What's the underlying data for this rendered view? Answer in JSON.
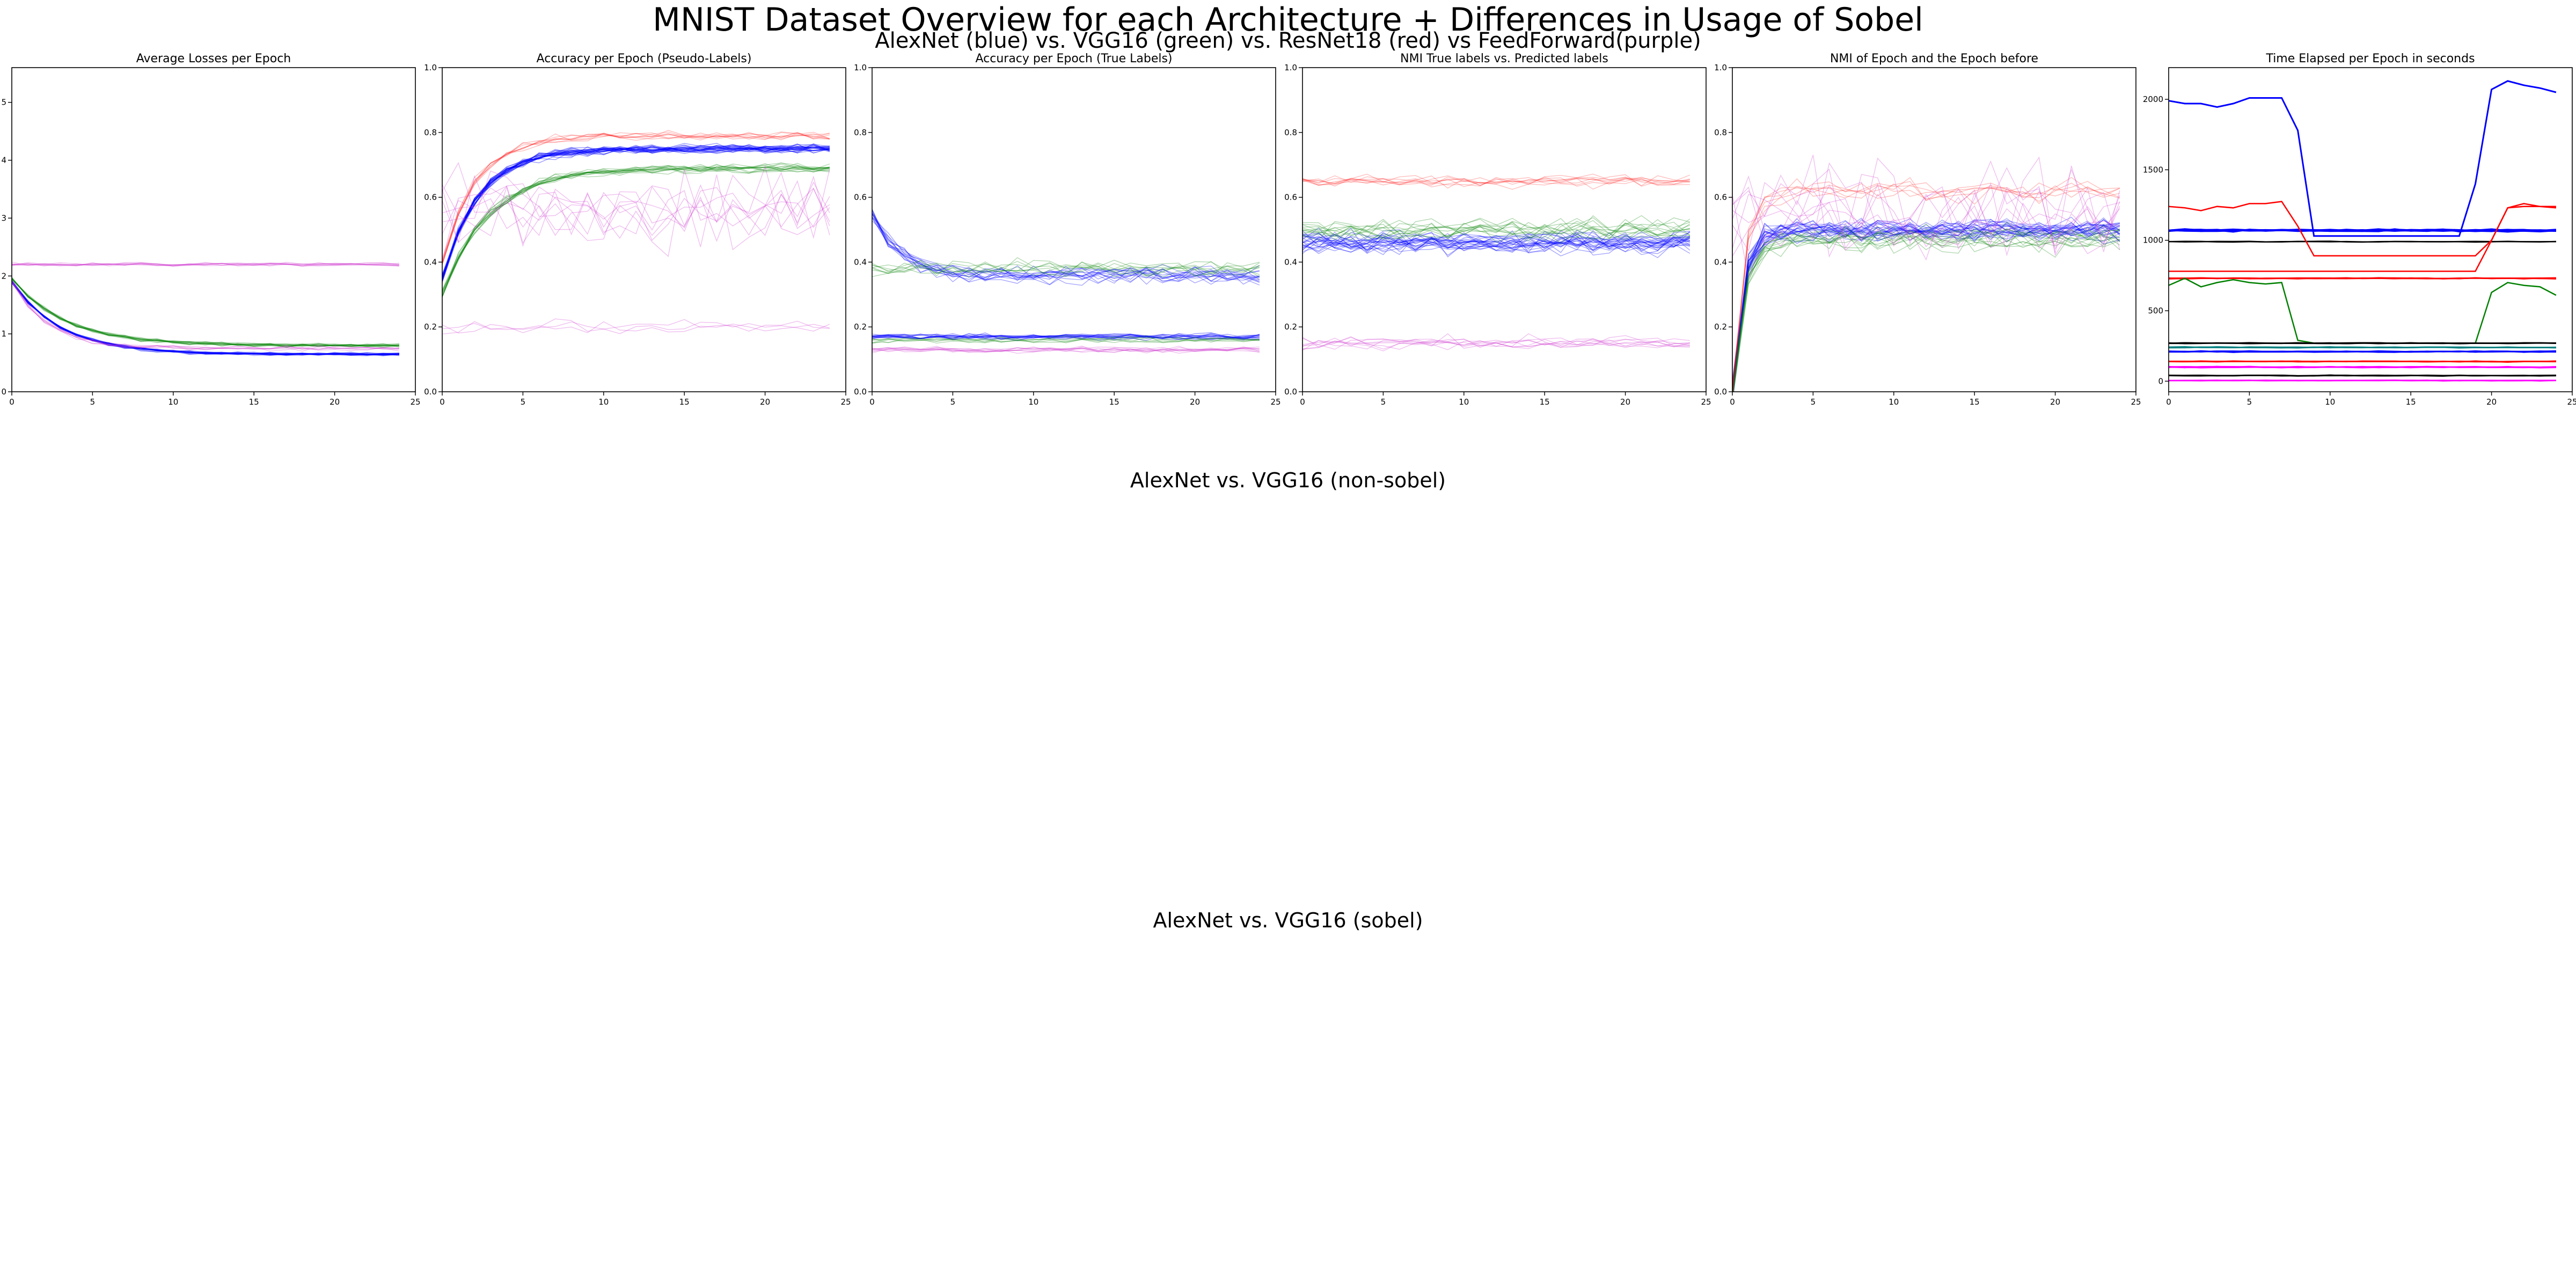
{
  "figure": {
    "title": "MNIST Dataset Overview for each Architecture + Differences in Usage of Sobel",
    "subtitle": "AlexNet (blue) vs. VGG16 (green) vs. ResNet18 (red) vs FeedForward(purple)",
    "sections": [
      "AlexNet vs. VGG16 (non-sobel)",
      "AlexNet vs. VGG16 (sobel)"
    ]
  },
  "colors": {
    "alexnet": "#0000ff",
    "vgg16": "#008000",
    "resnet18": "#ff0000",
    "feedforward": "#cc33cc",
    "black": "#000000",
    "magenta": "#ff00ff",
    "teal": "#008080"
  },
  "chart_data": [
    {
      "type": "line",
      "title": "Average Losses per Epoch",
      "xlim": [
        0,
        25
      ],
      "ylim": [
        0,
        5.6
      ],
      "xticks": [
        0,
        5,
        10,
        15,
        20,
        25
      ],
      "yticks": [
        0,
        1,
        2,
        3,
        4,
        5
      ],
      "series": [
        {
          "group": "alexnet",
          "count": 22,
          "alpha": 0.35,
          "width": 1.4,
          "profile": {
            "kind": "decay",
            "start": 1.9,
            "end": 0.65,
            "rate": 0.33,
            "jitter": 0.04
          }
        },
        {
          "group": "vgg16",
          "count": 14,
          "alpha": 0.3,
          "width": 1.4,
          "profile": {
            "kind": "decay",
            "start": 1.95,
            "end": 0.8,
            "rate": 0.3,
            "jitter": 0.05
          }
        },
        {
          "group": "feedforward",
          "count": 8,
          "alpha": 0.3,
          "width": 1.4,
          "profile": {
            "kind": "flat",
            "level": 2.2,
            "jitter": 0.05
          }
        },
        {
          "group": "feedforward",
          "count": 6,
          "alpha": 0.3,
          "width": 1.4,
          "profile": {
            "kind": "decay",
            "start": 1.9,
            "end": 0.75,
            "rate": 0.45,
            "jitter": 0.06
          }
        }
      ]
    },
    {
      "type": "line",
      "title": "Accuracy per Epoch (Pseudo-Labels)",
      "xlim": [
        0,
        25
      ],
      "ylim": [
        0,
        1.0
      ],
      "xticks": [
        0,
        5,
        10,
        15,
        20,
        25
      ],
      "yticks": [
        0.0,
        0.2,
        0.4,
        0.6,
        0.8,
        1.0
      ],
      "series": [
        {
          "group": "alexnet",
          "count": 24,
          "alpha": 0.4,
          "width": 1.4,
          "profile": {
            "kind": "rise",
            "start": 0.35,
            "end": 0.75,
            "rate": 0.45,
            "jitter": 0.02
          }
        },
        {
          "group": "vgg16",
          "count": 14,
          "alpha": 0.3,
          "width": 1.4,
          "profile": {
            "kind": "rise",
            "start": 0.3,
            "end": 0.69,
            "rate": 0.35,
            "jitter": 0.02
          }
        },
        {
          "group": "resnet18",
          "count": 8,
          "alpha": 0.25,
          "width": 1.4,
          "profile": {
            "kind": "rise",
            "start": 0.4,
            "end": 0.79,
            "rate": 0.5,
            "jitter": 0.02
          }
        },
        {
          "group": "feedforward",
          "count": 8,
          "alpha": 0.3,
          "width": 1.4,
          "profile": {
            "kind": "noisy",
            "level": 0.55,
            "jitter": 0.18
          }
        },
        {
          "group": "feedforward",
          "count": 3,
          "alpha": 0.3,
          "width": 1.4,
          "profile": {
            "kind": "flat",
            "level": 0.2,
            "jitter": 0.03
          }
        }
      ]
    },
    {
      "type": "line",
      "title": "Accuracy per Epoch (True Labels)",
      "xlim": [
        0,
        25
      ],
      "ylim": [
        0,
        1.0
      ],
      "xticks": [
        0,
        5,
        10,
        15,
        20,
        25
      ],
      "yticks": [
        0.0,
        0.2,
        0.4,
        0.6,
        0.8,
        1.0
      ],
      "series": [
        {
          "group": "alexnet",
          "count": 14,
          "alpha": 0.35,
          "width": 1.4,
          "profile": {
            "kind": "decay",
            "start": 0.55,
            "end": 0.36,
            "rate": 0.6,
            "jitter": 0.04
          }
        },
        {
          "group": "alexnet",
          "count": 12,
          "alpha": 0.4,
          "width": 1.4,
          "profile": {
            "kind": "flat",
            "level": 0.17,
            "jitter": 0.015
          }
        },
        {
          "group": "vgg16",
          "count": 8,
          "alpha": 0.3,
          "width": 1.4,
          "profile": {
            "kind": "flat",
            "level": 0.38,
            "jitter": 0.04
          }
        },
        {
          "group": "vgg16",
          "count": 6,
          "alpha": 0.3,
          "width": 1.4,
          "profile": {
            "kind": "flat",
            "level": 0.16,
            "jitter": 0.015
          }
        },
        {
          "group": "feedforward",
          "count": 8,
          "alpha": 0.3,
          "width": 1.4,
          "profile": {
            "kind": "flat",
            "level": 0.13,
            "jitter": 0.015
          }
        }
      ]
    },
    {
      "type": "line",
      "title": "NMI True labels vs. Predicted labels",
      "xlim": [
        0,
        25
      ],
      "ylim": [
        0,
        1.0
      ],
      "xticks": [
        0,
        5,
        10,
        15,
        20,
        25
      ],
      "yticks": [
        0.0,
        0.2,
        0.4,
        0.6,
        0.8,
        1.0
      ],
      "series": [
        {
          "group": "alexnet",
          "count": 24,
          "alpha": 0.35,
          "width": 1.4,
          "profile": {
            "kind": "flat",
            "level": 0.46,
            "jitter": 0.05
          }
        },
        {
          "group": "vgg16",
          "count": 12,
          "alpha": 0.3,
          "width": 1.4,
          "profile": {
            "kind": "flat",
            "level": 0.5,
            "jitter": 0.05
          }
        },
        {
          "group": "resnet18",
          "count": 8,
          "alpha": 0.25,
          "width": 1.4,
          "profile": {
            "kind": "flat",
            "level": 0.65,
            "jitter": 0.03
          }
        },
        {
          "group": "feedforward",
          "count": 8,
          "alpha": 0.3,
          "width": 1.4,
          "profile": {
            "kind": "flat",
            "level": 0.15,
            "jitter": 0.03
          }
        }
      ]
    },
    {
      "type": "line",
      "title": "NMI of Epoch and the Epoch before",
      "xlim": [
        0,
        25
      ],
      "ylim": [
        0,
        1.0
      ],
      "xticks": [
        0,
        5,
        10,
        15,
        20,
        25
      ],
      "yticks": [
        0.0,
        0.2,
        0.4,
        0.6,
        0.8,
        1.0
      ],
      "series": [
        {
          "group": "alexnet",
          "count": 24,
          "alpha": 0.35,
          "width": 1.4,
          "profile": {
            "kind": "rise",
            "start": 0.0,
            "end": 0.5,
            "rate": 1.6,
            "jitter": 0.05
          }
        },
        {
          "group": "vgg16",
          "count": 12,
          "alpha": 0.3,
          "width": 1.4,
          "profile": {
            "kind": "rise",
            "start": 0.0,
            "end": 0.47,
            "rate": 1.4,
            "jitter": 0.06
          }
        },
        {
          "group": "resnet18",
          "count": 6,
          "alpha": 0.25,
          "width": 1.4,
          "profile": {
            "kind": "rise",
            "start": 0.0,
            "end": 0.62,
            "rate": 1.5,
            "jitter": 0.05
          }
        },
        {
          "group": "feedforward",
          "count": 8,
          "alpha": 0.3,
          "width": 1.4,
          "profile": {
            "kind": "noisy",
            "level": 0.55,
            "jitter": 0.22
          }
        }
      ]
    },
    {
      "type": "line",
      "title": "Time Elapsed per Epoch in seconds",
      "xlim": [
        0,
        25
      ],
      "ylim": [
        -75,
        2225
      ],
      "xticks": [
        0,
        5,
        10,
        15,
        20,
        25
      ],
      "yticks": [
        0,
        500,
        1000,
        1500,
        2000
      ],
      "series": [
        {
          "group": "alexnet",
          "count": 1,
          "alpha": 1,
          "width": 3,
          "values": [
            1990,
            1970,
            1970,
            1945,
            1970,
            2010,
            2010,
            2010,
            1780,
            1030,
            1030,
            1030,
            1030,
            1030,
            1030,
            1030,
            1030,
            1030,
            1030,
            1400,
            2070,
            2130,
            2100,
            2080,
            2050
          ]
        },
        {
          "group": "alexnet",
          "count": 8,
          "alpha": 1,
          "width": 3,
          "profile": {
            "kind": "flat",
            "level": 1070,
            "jitter": 12
          }
        },
        {
          "group": "black",
          "count": 2,
          "alpha": 1,
          "width": 2.5,
          "profile": {
            "kind": "flat",
            "level": 990,
            "jitter": 4
          }
        },
        {
          "group": "resnet18",
          "count": 1,
          "alpha": 1,
          "width": 2.5,
          "values": [
            1240,
            1230,
            1210,
            1240,
            1230,
            1260,
            1260,
            1275,
            1100,
            890,
            890,
            890,
            890,
            890,
            890,
            890,
            890,
            890,
            890,
            890,
            1000,
            1230,
            1260,
            1240,
            1230
          ]
        },
        {
          "group": "resnet18",
          "count": 1,
          "alpha": 1,
          "width": 2.5,
          "values": [
            780,
            780,
            780,
            780,
            780,
            780,
            780,
            780,
            780,
            780,
            780,
            780,
            780,
            780,
            780,
            780,
            780,
            780,
            780,
            780,
            1000,
            1230,
            1240,
            1240,
            1240
          ]
        },
        {
          "group": "resnet18",
          "count": 4,
          "alpha": 1,
          "width": 2.5,
          "profile": {
            "kind": "flat",
            "level": 730,
            "jitter": 6
          }
        },
        {
          "group": "vgg16",
          "count": 1,
          "alpha": 1,
          "width": 2.5,
          "values": [
            680,
            730,
            670,
            700,
            720,
            700,
            690,
            700,
            290,
            270,
            270,
            270,
            270,
            270,
            270,
            270,
            270,
            270,
            270,
            270,
            630,
            700,
            680,
            670,
            610
          ]
        },
        {
          "group": "black",
          "count": 4,
          "alpha": 1,
          "width": 2.5,
          "profile": {
            "kind": "flat",
            "level": 270,
            "jitter": 5
          }
        },
        {
          "group": "alexnet",
          "count": 6,
          "alpha": 1,
          "width": 2.5,
          "profile": {
            "kind": "flat",
            "level": 210,
            "jitter": 6
          }
        },
        {
          "group": "teal",
          "count": 4,
          "alpha": 1,
          "width": 2.5,
          "profile": {
            "kind": "flat",
            "level": 240,
            "jitter": 5
          }
        },
        {
          "group": "resnet18",
          "count": 4,
          "alpha": 1,
          "width": 2.5,
          "profile": {
            "kind": "flat",
            "level": 140,
            "jitter": 5
          }
        },
        {
          "group": "magenta",
          "count": 6,
          "alpha": 1,
          "width": 2.5,
          "profile": {
            "kind": "flat",
            "level": 100,
            "jitter": 6
          }
        },
        {
          "group": "black",
          "count": 4,
          "alpha": 1,
          "width": 2.5,
          "profile": {
            "kind": "flat",
            "level": 40,
            "jitter": 4
          }
        },
        {
          "group": "magenta",
          "count": 4,
          "alpha": 1,
          "width": 2.5,
          "profile": {
            "kind": "flat",
            "level": 5,
            "jitter": 3
          }
        }
      ]
    }
  ]
}
